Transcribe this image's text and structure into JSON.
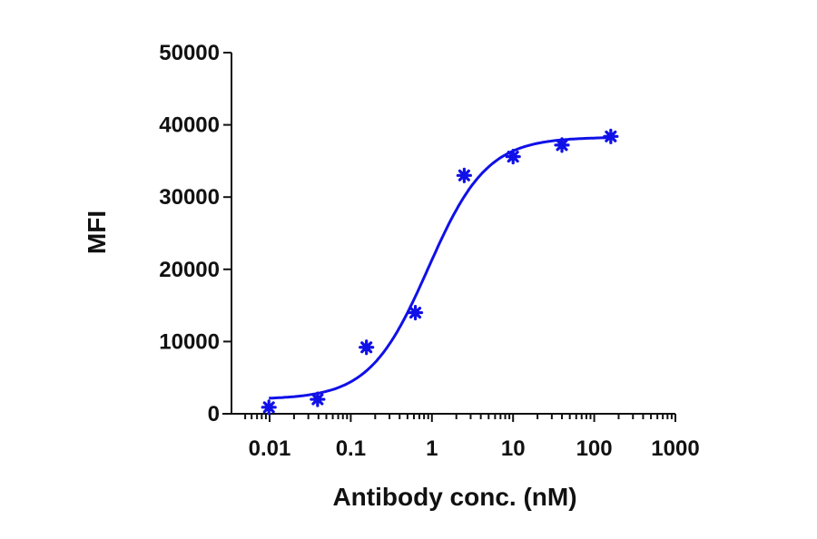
{
  "chart_data": {
    "type": "scatter",
    "title": "",
    "xlabel": "Antibody conc. (nM)",
    "ylabel": "MFI",
    "xscale": "log",
    "xlim": [
      0.005,
      1000
    ],
    "ylim": [
      0,
      50000
    ],
    "x_ticks": [
      "0.01",
      "0.1",
      "1",
      "10",
      "100",
      "1000"
    ],
    "y_ticks": [
      "0",
      "10000",
      "20000",
      "30000",
      "40000",
      "50000"
    ],
    "grid": false,
    "legend": null,
    "color": "#1010e8",
    "series": [
      {
        "name": "MFI",
        "marker": "asterisk",
        "x": [
          0.0098,
          0.039,
          0.156,
          0.625,
          2.5,
          10,
          40,
          160
        ],
        "y": [
          900,
          2000,
          9200,
          14000,
          33000,
          35600,
          37200,
          38400
        ]
      }
    ],
    "fit": {
      "type": "4PL sigmoid",
      "bottom": 2000,
      "top": 38300,
      "ec50": 0.9,
      "hill": 1.2,
      "x_range": [
        0.0098,
        160
      ]
    }
  }
}
